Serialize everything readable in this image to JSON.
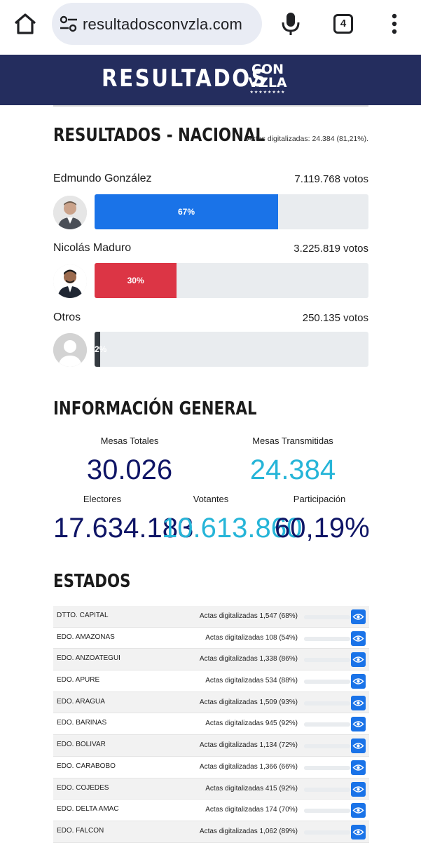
{
  "browser": {
    "url": "resultadosconvzla.com",
    "tab_count": "4"
  },
  "header": {
    "brand_main": "RESULTADOS",
    "brand_sub_line1": "CON",
    "brand_sub_line2": "VZLA",
    "brand_sub_stars": "★★★★★★★★"
  },
  "nacional": {
    "title": "RESULTADOS - NACIONAL",
    "actas_summary": "Actas digitalizadas: 24.384 (81,21%).",
    "candidates": [
      {
        "name": "Edmundo González",
        "votes": "7.119.768 votos",
        "percent_label": "67%",
        "percent": 67,
        "color": "#1a73e8"
      },
      {
        "name": "Nicolás Maduro",
        "votes": "3.225.819 votos",
        "percent_label": "30%",
        "percent": 30,
        "color": "#dc3545"
      },
      {
        "name": "Otros",
        "votes": "250.135 votos",
        "percent_label": "2%",
        "percent": 2,
        "color": "#343a40"
      }
    ]
  },
  "general": {
    "title": "INFORMACIÓN GENERAL",
    "mesas_totales_label": "Mesas Totales",
    "mesas_totales": "30.026",
    "mesas_transmitidas_label": "Mesas Transmitidas",
    "mesas_transmitidas": "24.384",
    "electores_label": "Electores",
    "electores": "17.634.183",
    "votantes_label": "Votantes",
    "votantes": "10.613.860",
    "participacion_label": "Participación",
    "participacion": "60,19%",
    "color_dark": "#0f1566",
    "color_light": "#26b5d8"
  },
  "estados": {
    "title": "ESTADOS",
    "rows": [
      {
        "name": "DTTO. CAPITAL",
        "actas": "Actas digitalizadas 1,547 (68%)",
        "percent": 68
      },
      {
        "name": "EDO. AMAZONAS",
        "actas": "Actas digitalizadas 108 (54%)",
        "percent": 54
      },
      {
        "name": "EDO. ANZOATEGUI",
        "actas": "Actas digitalizadas 1,338 (86%)",
        "percent": 86
      },
      {
        "name": "EDO. APURE",
        "actas": "Actas digitalizadas 534 (88%)",
        "percent": 88
      },
      {
        "name": "EDO. ARAGUA",
        "actas": "Actas digitalizadas 1,509 (93%)",
        "percent": 93
      },
      {
        "name": "EDO. BARINAS",
        "actas": "Actas digitalizadas 945 (92%)",
        "percent": 92
      },
      {
        "name": "EDO. BOLIVAR",
        "actas": "Actas digitalizadas 1,134 (72%)",
        "percent": 72
      },
      {
        "name": "EDO. CARABOBO",
        "actas": "Actas digitalizadas 1,366 (66%)",
        "percent": 66
      },
      {
        "name": "EDO. COJEDES",
        "actas": "Actas digitalizadas 415 (92%)",
        "percent": 92
      },
      {
        "name": "EDO. DELTA AMAC",
        "actas": "Actas digitalizadas 174 (70%)",
        "percent": 70
      },
      {
        "name": "EDO. FALCON",
        "actas": "Actas digitalizadas 1,062 (89%)",
        "percent": 89
      }
    ]
  }
}
